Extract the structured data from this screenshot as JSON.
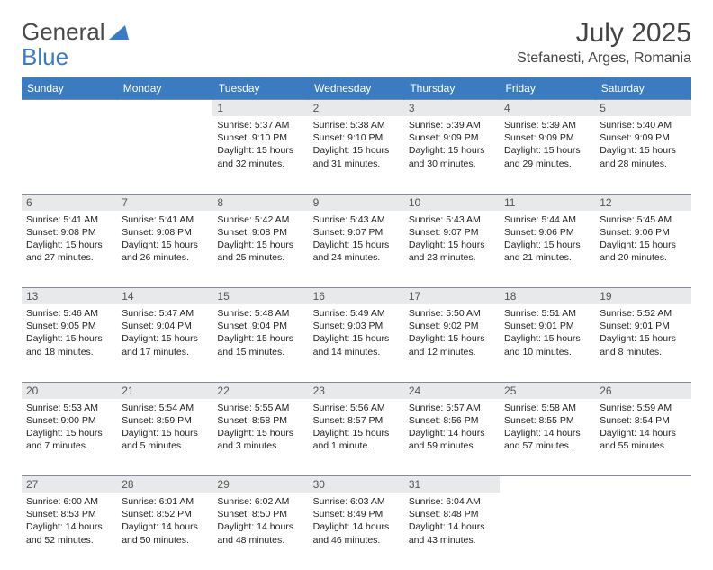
{
  "logo": {
    "text1": "General",
    "text2": "Blue"
  },
  "title": "July 2025",
  "location": "Stefanesti, Arges, Romania",
  "colors": {
    "header_bg": "#3b7bbf",
    "header_fg": "#ffffff",
    "daynum_bg": "#e8e9eb",
    "daynum_fg": "#555555",
    "text": "#222222",
    "border": "#c8c8c8"
  },
  "weekday_labels": [
    "Sunday",
    "Monday",
    "Tuesday",
    "Wednesday",
    "Thursday",
    "Friday",
    "Saturday"
  ],
  "first_weekday_index": 2,
  "days": [
    {
      "n": 1,
      "sunrise": "5:37 AM",
      "sunset": "9:10 PM",
      "day_h": 15,
      "day_m": 32
    },
    {
      "n": 2,
      "sunrise": "5:38 AM",
      "sunset": "9:10 PM",
      "day_h": 15,
      "day_m": 31
    },
    {
      "n": 3,
      "sunrise": "5:39 AM",
      "sunset": "9:09 PM",
      "day_h": 15,
      "day_m": 30
    },
    {
      "n": 4,
      "sunrise": "5:39 AM",
      "sunset": "9:09 PM",
      "day_h": 15,
      "day_m": 29
    },
    {
      "n": 5,
      "sunrise": "5:40 AM",
      "sunset": "9:09 PM",
      "day_h": 15,
      "day_m": 28
    },
    {
      "n": 6,
      "sunrise": "5:41 AM",
      "sunset": "9:08 PM",
      "day_h": 15,
      "day_m": 27
    },
    {
      "n": 7,
      "sunrise": "5:41 AM",
      "sunset": "9:08 PM",
      "day_h": 15,
      "day_m": 26
    },
    {
      "n": 8,
      "sunrise": "5:42 AM",
      "sunset": "9:08 PM",
      "day_h": 15,
      "day_m": 25
    },
    {
      "n": 9,
      "sunrise": "5:43 AM",
      "sunset": "9:07 PM",
      "day_h": 15,
      "day_m": 24
    },
    {
      "n": 10,
      "sunrise": "5:43 AM",
      "sunset": "9:07 PM",
      "day_h": 15,
      "day_m": 23
    },
    {
      "n": 11,
      "sunrise": "5:44 AM",
      "sunset": "9:06 PM",
      "day_h": 15,
      "day_m": 21
    },
    {
      "n": 12,
      "sunrise": "5:45 AM",
      "sunset": "9:06 PM",
      "day_h": 15,
      "day_m": 20
    },
    {
      "n": 13,
      "sunrise": "5:46 AM",
      "sunset": "9:05 PM",
      "day_h": 15,
      "day_m": 18
    },
    {
      "n": 14,
      "sunrise": "5:47 AM",
      "sunset": "9:04 PM",
      "day_h": 15,
      "day_m": 17
    },
    {
      "n": 15,
      "sunrise": "5:48 AM",
      "sunset": "9:04 PM",
      "day_h": 15,
      "day_m": 15
    },
    {
      "n": 16,
      "sunrise": "5:49 AM",
      "sunset": "9:03 PM",
      "day_h": 15,
      "day_m": 14
    },
    {
      "n": 17,
      "sunrise": "5:50 AM",
      "sunset": "9:02 PM",
      "day_h": 15,
      "day_m": 12
    },
    {
      "n": 18,
      "sunrise": "5:51 AM",
      "sunset": "9:01 PM",
      "day_h": 15,
      "day_m": 10
    },
    {
      "n": 19,
      "sunrise": "5:52 AM",
      "sunset": "9:01 PM",
      "day_h": 15,
      "day_m": 8
    },
    {
      "n": 20,
      "sunrise": "5:53 AM",
      "sunset": "9:00 PM",
      "day_h": 15,
      "day_m": 7
    },
    {
      "n": 21,
      "sunrise": "5:54 AM",
      "sunset": "8:59 PM",
      "day_h": 15,
      "day_m": 5
    },
    {
      "n": 22,
      "sunrise": "5:55 AM",
      "sunset": "8:58 PM",
      "day_h": 15,
      "day_m": 3
    },
    {
      "n": 23,
      "sunrise": "5:56 AM",
      "sunset": "8:57 PM",
      "day_h": 15,
      "day_m": 1
    },
    {
      "n": 24,
      "sunrise": "5:57 AM",
      "sunset": "8:56 PM",
      "day_h": 14,
      "day_m": 59
    },
    {
      "n": 25,
      "sunrise": "5:58 AM",
      "sunset": "8:55 PM",
      "day_h": 14,
      "day_m": 57
    },
    {
      "n": 26,
      "sunrise": "5:59 AM",
      "sunset": "8:54 PM",
      "day_h": 14,
      "day_m": 55
    },
    {
      "n": 27,
      "sunrise": "6:00 AM",
      "sunset": "8:53 PM",
      "day_h": 14,
      "day_m": 52
    },
    {
      "n": 28,
      "sunrise": "6:01 AM",
      "sunset": "8:52 PM",
      "day_h": 14,
      "day_m": 50
    },
    {
      "n": 29,
      "sunrise": "6:02 AM",
      "sunset": "8:50 PM",
      "day_h": 14,
      "day_m": 48
    },
    {
      "n": 30,
      "sunrise": "6:03 AM",
      "sunset": "8:49 PM",
      "day_h": 14,
      "day_m": 46
    },
    {
      "n": 31,
      "sunrise": "6:04 AM",
      "sunset": "8:48 PM",
      "day_h": 14,
      "day_m": 43
    }
  ],
  "labels": {
    "sunrise": "Sunrise:",
    "sunset": "Sunset:",
    "daylight": "Daylight:",
    "hours": "hours",
    "and": "and",
    "minutes": "minutes.",
    "minute": "minute."
  }
}
